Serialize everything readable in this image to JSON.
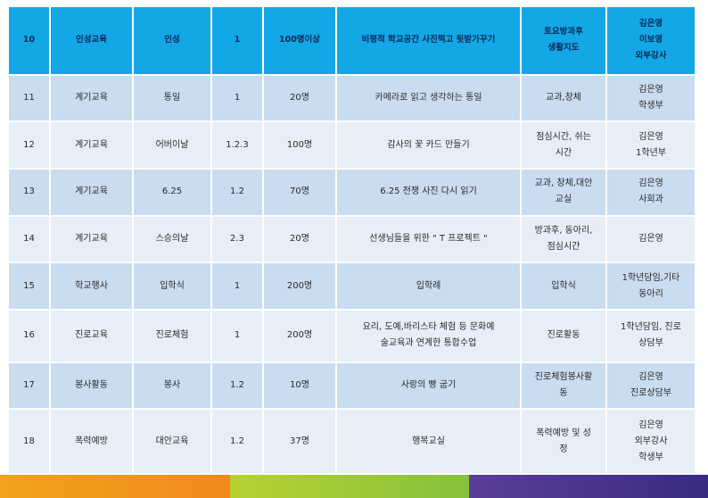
{
  "header": [
    "10",
    "인성교육",
    "인성",
    "1",
    "100명이상",
    "비평적 학교공간 사진찍고 뒷받가꾸기",
    "토요방과후|생활지도",
    "김은영|이보영|외부강사"
  ],
  "rows": [
    [
      "11",
      "계기교육",
      "통일",
      "1",
      "20명",
      "카메라로 읽고 생각하는 통일",
      "교과,창체",
      "김은영|학생부"
    ],
    [
      "12",
      "계기교육",
      "어버이날",
      "1.2.3",
      "100명",
      "감사의 꽃 카드 만들기",
      "점심시간, 쉬는|시간",
      "김은영|1학년부"
    ],
    [
      "13",
      "계기교육",
      "6.25",
      "1.2",
      "70명",
      "6.25 전쟁 사진 다시 읽기",
      "교과, 창체,대안|교실",
      "김은영|사회과"
    ],
    [
      "14",
      "계기교육",
      "스승의날",
      "2.3",
      "20명",
      "선생님들을 위한 \" T 프로젝트 \"",
      "방과후, 동아리,|점심시간",
      "김은영"
    ],
    [
      "15",
      "학교행사",
      "입학식",
      "1",
      "200명",
      "입학례",
      "입학식",
      "1학년담임,기타|동아리"
    ],
    [
      "16",
      "진로교육",
      "진로체험",
      "1",
      "200명",
      "요리, 도예,바리스타 체험 등 문화예|술교육과 연계한 통합수업",
      "진로활동",
      "1학년담임, 진로|상담부"
    ],
    [
      "17",
      "봉사활동",
      "봉사",
      "1.2",
      "10명",
      "사랑의 빵 굽기",
      "진로체험봉사활|동",
      "김은영|진로상담부"
    ],
    [
      "18",
      "폭력예방",
      "대안교육",
      "1.2",
      "37명",
      "행복교실",
      "폭력예방 및 성|정",
      "김은영|외부강사|학생부"
    ]
  ]
}
